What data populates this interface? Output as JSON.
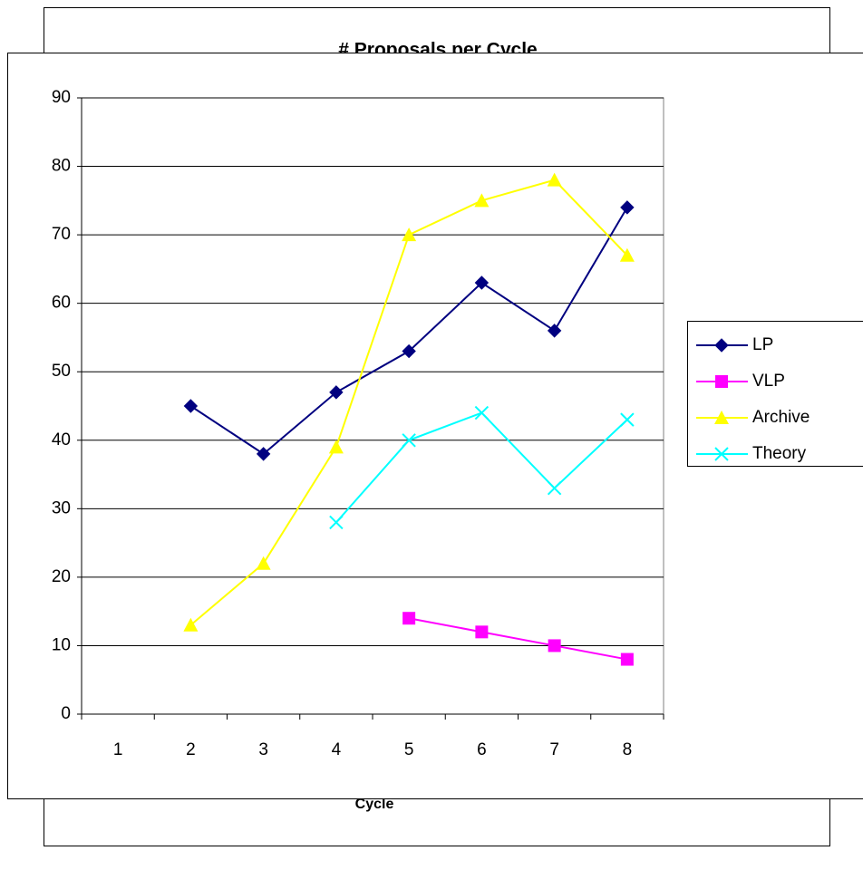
{
  "chart_data": {
    "type": "line",
    "title": "# Proposals per Cycle",
    "x_label": "Cycle",
    "categories": [
      "1",
      "2",
      "3",
      "4",
      "5",
      "6",
      "7",
      "8"
    ],
    "series": [
      {
        "name": "LP",
        "color": "#000080",
        "marker": "diamond",
        "values": [
          null,
          45,
          38,
          47,
          53,
          63,
          56,
          74
        ]
      },
      {
        "name": "VLP",
        "color": "#ff00ff",
        "marker": "square",
        "values": [
          null,
          null,
          null,
          null,
          14,
          12,
          10,
          8
        ]
      },
      {
        "name": "Archive",
        "color": "#ffff00",
        "marker": "triangle",
        "values": [
          null,
          13,
          22,
          39,
          70,
          75,
          78,
          67
        ]
      },
      {
        "name": "Theory",
        "color": "#00ffff",
        "marker": "x",
        "values": [
          null,
          null,
          null,
          28,
          40,
          44,
          33,
          43
        ]
      }
    ],
    "ylim": [
      0,
      90
    ],
    "yticks": [
      0,
      10,
      20,
      30,
      40,
      50,
      60,
      70,
      80,
      90
    ],
    "grid": true,
    "legend": "right"
  }
}
